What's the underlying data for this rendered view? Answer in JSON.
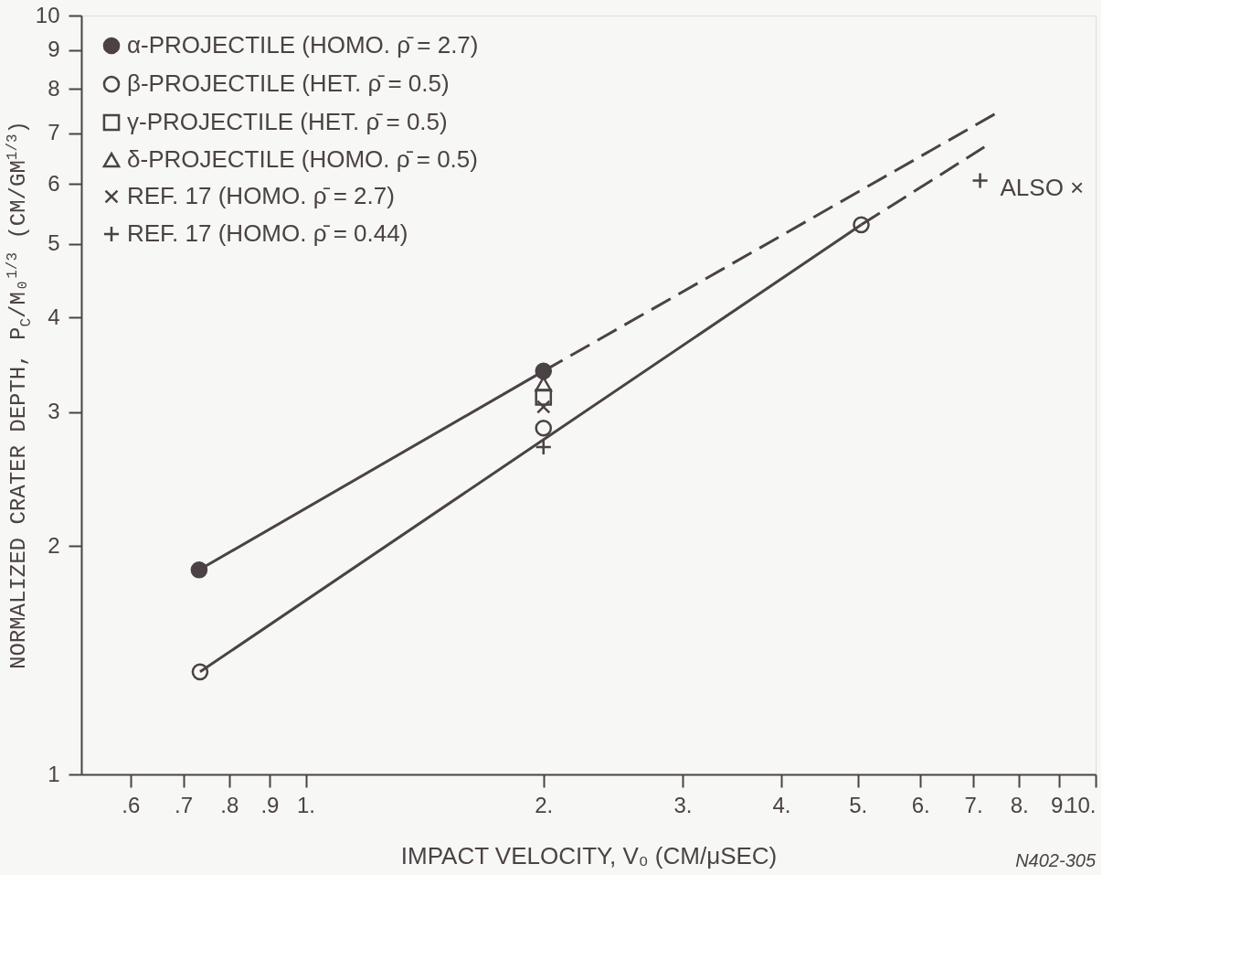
{
  "chart_data": {
    "type": "scatter",
    "xlabel": "IMPACT VELOCITY, V₀ (CM/μSEC)",
    "ylabel": "NORMALIZED CRATER DEPTH, P$_{C}$/M₀$^{1/3}$ (CM/GM$^{1/3}$)",
    "log": "xy",
    "grid": false,
    "legend": "top left",
    "xlim": [
      0.52,
      10
    ],
    "ylim": [
      1,
      10
    ],
    "xticks": [
      {
        "value": 0.6,
        "label": ".6"
      },
      {
        "value": 0.7,
        "label": ".7"
      },
      {
        "value": 0.8,
        "label": ".8"
      },
      {
        "value": 0.9,
        "label": ".9"
      },
      {
        "value": 1,
        "label": "1."
      },
      {
        "value": 2,
        "label": "2."
      },
      {
        "value": 3,
        "label": "3."
      },
      {
        "value": 4,
        "label": "4."
      },
      {
        "value": 5,
        "label": "5."
      },
      {
        "value": 6,
        "label": "6."
      },
      {
        "value": 7,
        "label": "7."
      },
      {
        "value": 8,
        "label": "8."
      },
      {
        "value": 9,
        "label": "9."
      },
      {
        "value": 10,
        "label": "10."
      }
    ],
    "yticks": [
      1,
      2,
      3,
      4,
      5,
      6,
      7,
      8,
      9,
      10
    ],
    "series": [
      {
        "name": "α-PROJECTILE (HOMO. ρ̄ = 2.7)",
        "color": "#4a4245",
        "marker": "circle",
        "x": [
          0.733,
          2.0
        ],
        "values": [
          1.86,
          3.4
        ]
      },
      {
        "name": "β-PROJECTILE (HET. ρ̄ = 0.5)",
        "color": "#4a4245",
        "marker": "circle",
        "x": [
          0.735,
          2.0,
          5.05
        ],
        "values": [
          1.365,
          2.86,
          5.3
        ]
      },
      {
        "name": "γ-PROJECTILE (HET. ρ̄ = 0.5)",
        "color": "#4a4245",
        "marker": "square",
        "x": [
          2.0
        ],
        "values": [
          3.14
        ]
      },
      {
        "name": "δ-PROJECTILE (HOMO. ρ̄ = 0.5)",
        "color": "#4a4245",
        "marker": "triangle",
        "x": [
          2.0
        ],
        "values": [
          3.27
        ]
      },
      {
        "name": "REF. 17 (HOMO. ρ̄ = 2.7)",
        "color": "#4a4245",
        "marker": "cross",
        "x": [
          2.0
        ],
        "values": [
          3.05
        ]
      },
      {
        "name": "REF. 17 (HOMO. ρ̄ = 0.44)",
        "color": "#4a4245",
        "marker": "plus",
        "x": [
          2.0,
          7.14
        ],
        "values": [
          2.7,
          6.06
        ]
      },
      {
        "type": "line",
        "line_style": "solid",
        "color": "#4a4245",
        "x": [
          0.733,
          2.0
        ],
        "values": [
          1.86,
          3.4
        ]
      },
      {
        "type": "line",
        "line_style": "dashed",
        "color": "#4a4245",
        "x": [
          2.0,
          7.46
        ],
        "values": [
          3.4,
          7.42
        ]
      },
      {
        "type": "line",
        "line_style": "solid",
        "color": "#4a4245",
        "x": [
          0.735,
          5.05
        ],
        "values": [
          1.365,
          5.3
        ]
      },
      {
        "type": "line",
        "line_style": "dashed",
        "color": "#4a4245",
        "x": [
          5.05,
          7.23
        ],
        "values": [
          5.3,
          6.71
        ]
      }
    ],
    "annotations": [
      {
        "text": "ALSO ×",
        "x": 7.14,
        "y": 6.06
      },
      "N402-305"
    ]
  }
}
